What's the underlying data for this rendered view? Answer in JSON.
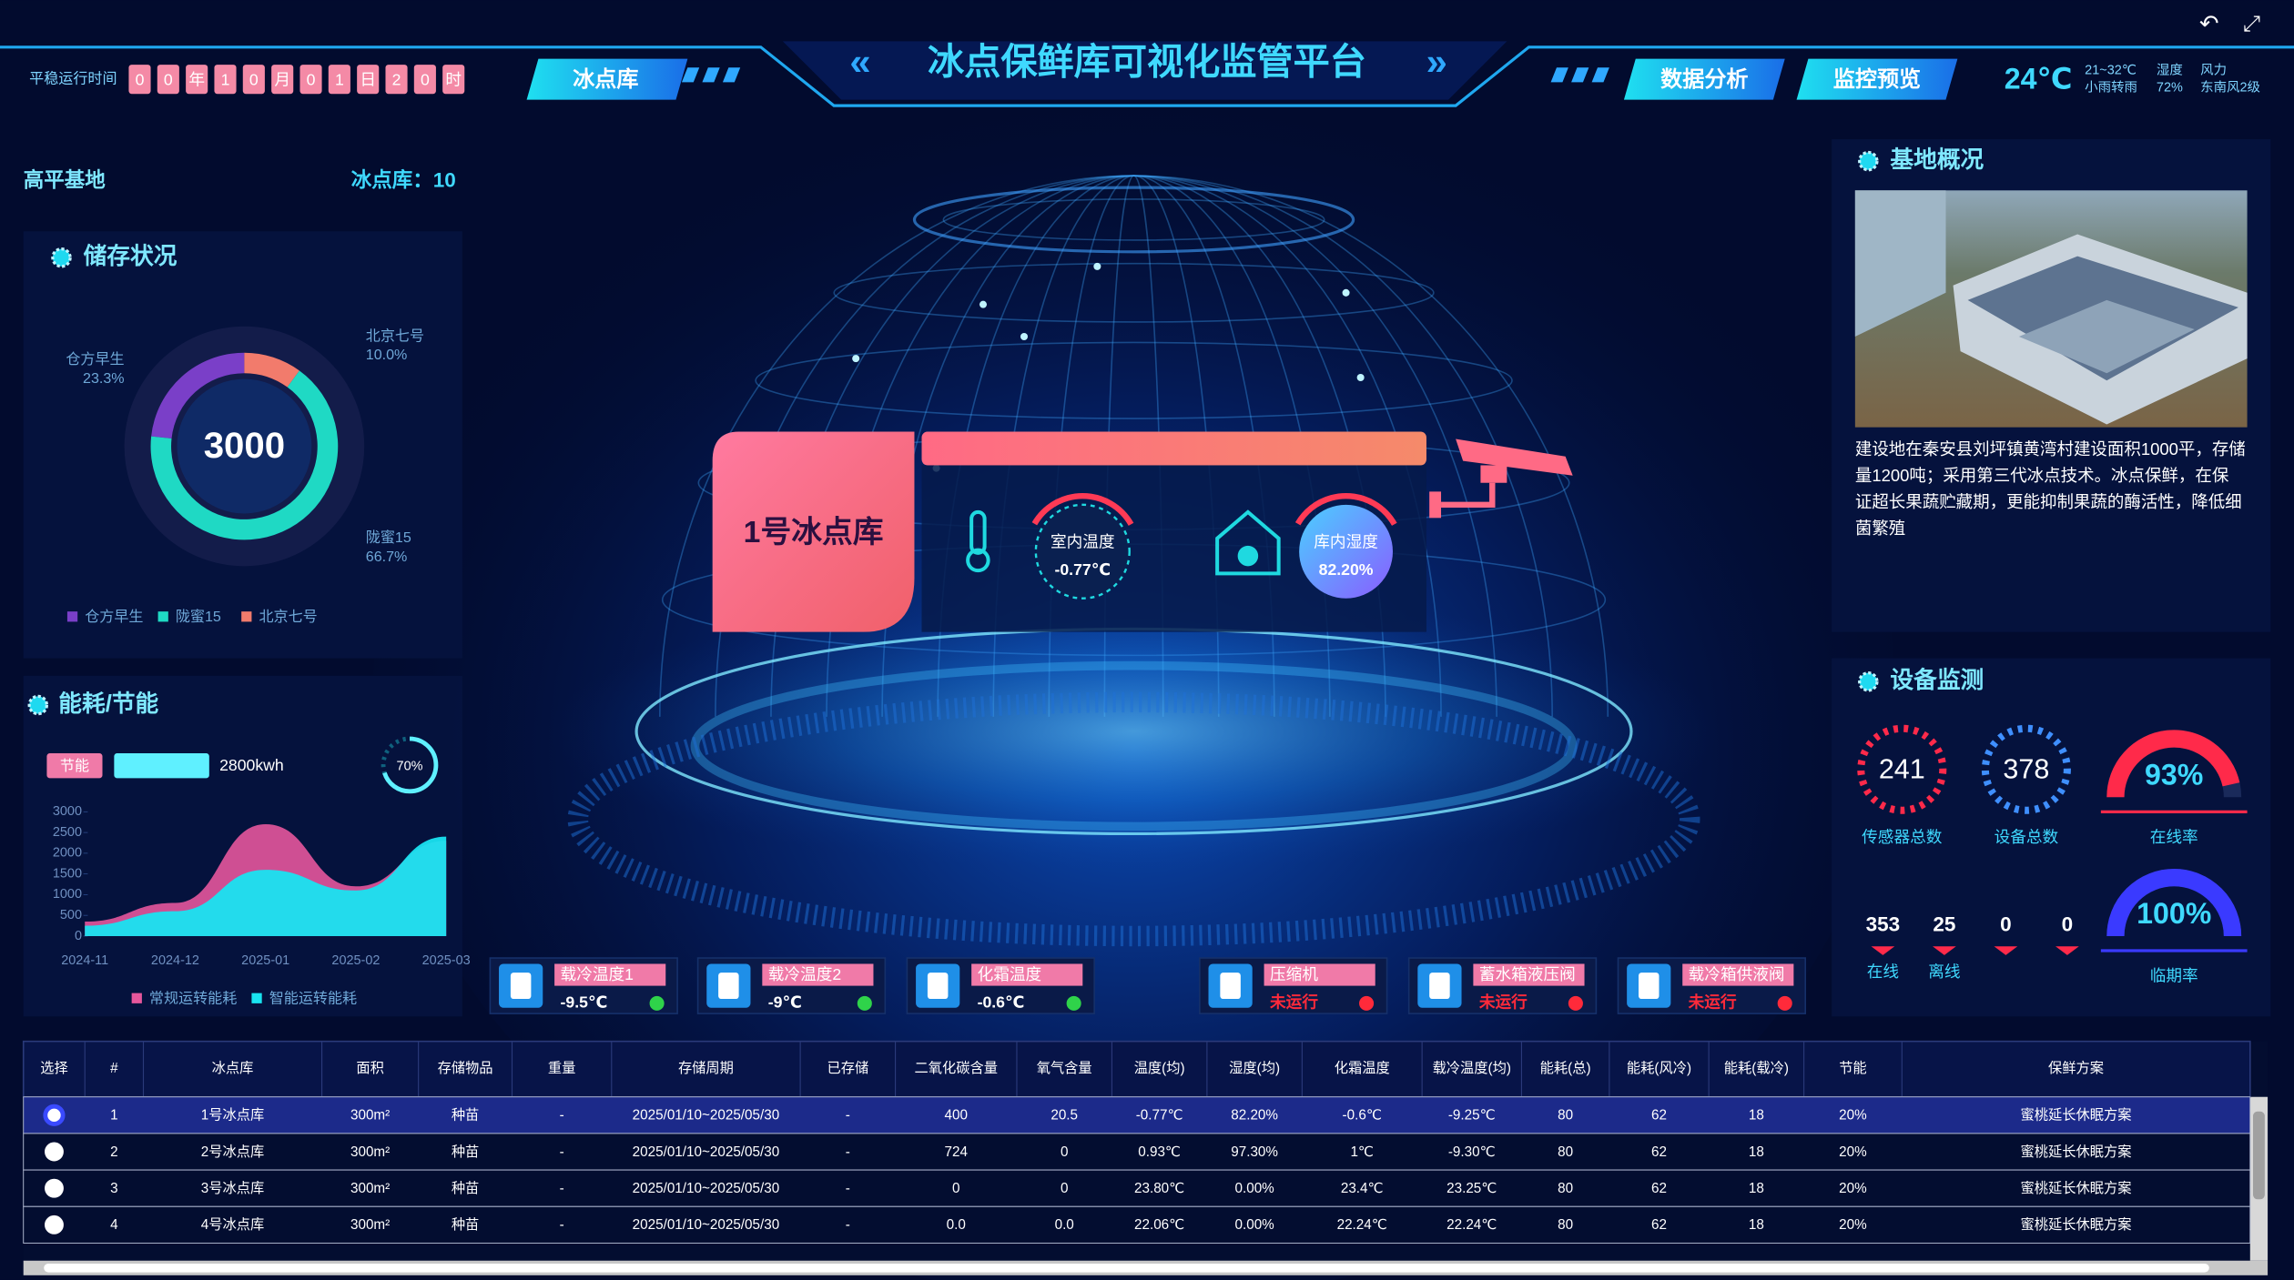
{
  "header": {
    "runtime_label": "平稳运行时间",
    "runtime": [
      "0",
      "0",
      "年",
      "1",
      "0",
      "月",
      "0",
      "1",
      "日",
      "2",
      "0",
      "时"
    ],
    "nav_left": "冰点库",
    "title": "冰点保鲜库可视化监管平台",
    "nav_right": [
      "数据分析",
      "监控预览"
    ],
    "weather": {
      "temperature": "24℃",
      "range": "21~32℃",
      "condition": "小雨转雨",
      "humidity_label": "湿度",
      "humidity": "72%",
      "wind_label": "风力",
      "wind": "东南风2级"
    }
  },
  "base": {
    "name": "高平基地",
    "count": "冰点库：10"
  },
  "storage": {
    "title": "储存状况",
    "total": "3000",
    "chart": {
      "type": "pie",
      "categories": [
        "仓方早生",
        "陇蜜15",
        "北京七号"
      ],
      "values": [
        23.3,
        66.7,
        10.0
      ],
      "value_labels": [
        "23.3%",
        "66.7%",
        "10.0%"
      ],
      "colors": [
        "#7a3fc8",
        "#1fd9c4",
        "#f27b6c"
      ]
    }
  },
  "energy": {
    "title": "能耗/节能",
    "tag": "节能",
    "amount": "2800kwh",
    "saving": {
      "value": 70,
      "label": "70%"
    },
    "chart": {
      "type": "area",
      "x": [
        "2024-11",
        "2024-12",
        "2025-01",
        "2025-02",
        "2025-03"
      ],
      "series": [
        {
          "name": "常规运转能耗",
          "color": "#e6579c",
          "values": [
            350,
            800,
            2700,
            1200,
            2300
          ]
        },
        {
          "name": "智能运转能耗",
          "color": "#19e3f0",
          "values": [
            250,
            600,
            1600,
            1100,
            2400
          ]
        }
      ],
      "ylim": [
        0,
        3000
      ],
      "yticks": [
        0,
        500,
        1000,
        1500,
        2000,
        2500,
        3000
      ]
    }
  },
  "store": {
    "name": "1号冰点库",
    "indoor_temp": {
      "label": "室内温度",
      "value": "-0.77℃"
    },
    "humidity": {
      "label": "库内湿度",
      "value": "82.20%"
    }
  },
  "overview": {
    "title": "基地概况",
    "description": [
      "建设地在秦安县刘坪镇黄湾村建设面积1000平，存储",
      "量1200吨；采用第三代冰点技术。冰点保鲜，在保",
      "证超长果蔬贮藏期，更能抑制果蔬的酶活性，降低细",
      "菌繁殖"
    ]
  },
  "devices": {
    "title": "设备监测",
    "sensors": {
      "value": "241",
      "label": "传感器总数"
    },
    "devices": {
      "value": "378",
      "label": "设备总数"
    },
    "online_rate": {
      "value": 93,
      "label": "93%",
      "name": "在线率"
    },
    "expiry_rate": {
      "value": 100,
      "label": "100%",
      "name": "临期率"
    },
    "counts": [
      {
        "value": "353",
        "label": "在线"
      },
      {
        "value": "25",
        "label": "离线"
      },
      {
        "value": "0"
      },
      {
        "value": "0"
      }
    ]
  },
  "status_cards": [
    {
      "name": "载冷温度1",
      "value": "-9.5℃",
      "value_color": "#ffffff",
      "state_color": "#2fd34a"
    },
    {
      "name": "载冷温度2",
      "value": "-9℃",
      "value_color": "#ffffff",
      "state_color": "#2fd34a"
    },
    {
      "name": "化霜温度",
      "value": "-0.6℃",
      "value_color": "#ffffff",
      "state_color": "#2fd34a"
    },
    {
      "name": "压缩机",
      "value": "未运行",
      "value_color": "#ff2a3a",
      "state_color": "#ff2a3a"
    },
    {
      "name": "蓄水箱液压阀",
      "value": "未运行",
      "value_color": "#ff2a3a",
      "state_color": "#ff2a3a"
    },
    {
      "name": "载冷箱供液阀",
      "value": "未运行",
      "value_color": "#ff2a3a",
      "state_color": "#ff2a3a"
    }
  ],
  "table": {
    "columns": [
      "选择",
      "#",
      "冰点库",
      "面积",
      "存储物品",
      "重量",
      "存储周期",
      "已存储",
      "二氧化碳含量",
      "氧气含量",
      "温度(均)",
      "湿度(均)",
      "化霜温度",
      "载冷温度(均)",
      "能耗(总)",
      "能耗(风冷)",
      "能耗(载冷)",
      "节能",
      "保鲜方案"
    ],
    "rows": [
      [
        "1",
        "1号冰点库",
        "300m²",
        "种苗",
        "-",
        "2025/01/10~2025/05/30",
        "-",
        "400",
        "20.5",
        "-0.77℃",
        "82.20%",
        "-0.6℃",
        "-9.25℃",
        "80",
        "62",
        "18",
        "20%",
        "蜜桃延长休眠方案"
      ],
      [
        "2",
        "2号冰点库",
        "300m²",
        "种苗",
        "-",
        "2025/01/10~2025/05/30",
        "-",
        "724",
        "0",
        "0.93℃",
        "97.30%",
        "1℃",
        "-9.30℃",
        "80",
        "62",
        "18",
        "20%",
        "蜜桃延长休眠方案"
      ],
      [
        "3",
        "3号冰点库",
        "300m²",
        "种苗",
        "-",
        "2025/01/10~2025/05/30",
        "-",
        "0",
        "0",
        "23.80℃",
        "0.00%",
        "23.4℃",
        "23.25℃",
        "80",
        "62",
        "18",
        "20%",
        "蜜桃延长休眠方案"
      ],
      [
        "4",
        "4号冰点库",
        "300m²",
        "种苗",
        "-",
        "2025/01/10~2025/05/30",
        "-",
        "0.0",
        "0.0",
        "22.06℃",
        "0.00%",
        "22.24℃",
        "22.24℃",
        "80",
        "62",
        "18",
        "20%",
        "蜜桃延长休眠方案"
      ]
    ]
  }
}
